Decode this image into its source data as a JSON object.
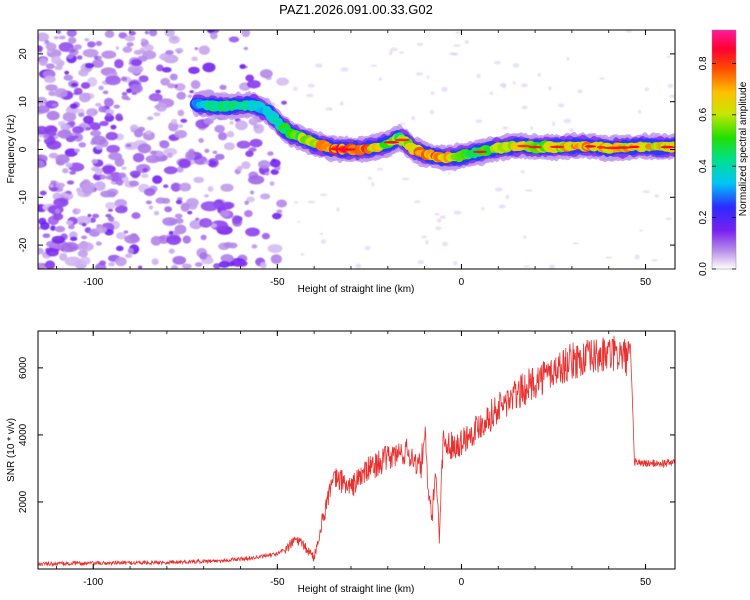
{
  "title": "PAZ1.2026.091.00.33.G02",
  "chart_data": [
    {
      "type": "heatmap",
      "xlabel": "Height of straight line (km)",
      "ylabel": "Frequency (Hz)",
      "xlim": [
        -115,
        58
      ],
      "ylim": [
        -25,
        25
      ],
      "xticks": [
        -100,
        -50,
        0,
        50
      ],
      "yticks": [
        -20,
        -10,
        0,
        10,
        20
      ],
      "xtick_labels": [
        "-100",
        "-50",
        "0",
        "50"
      ],
      "ytick_labels": [
        "-20",
        "-10",
        "0",
        "10",
        "20"
      ],
      "colorbar": {
        "label": "Normalized spectral amplitude",
        "range": [
          0,
          0.93
        ],
        "ticks": [
          0.0,
          0.2,
          0.4,
          0.6,
          0.8
        ],
        "tick_labels": [
          "0.0",
          "0.2",
          "0.4",
          "0.6",
          "0.8"
        ],
        "colormap": "white-purple-blue-cyan-green-yellow-orange-red-magenta"
      },
      "ridge": {
        "x": [
          -72,
          -68,
          -64,
          -60,
          -56,
          -52,
          -49,
          -47,
          -45,
          -42,
          -39,
          -35,
          -31,
          -27,
          -23,
          -19,
          -17,
          -15,
          -13,
          -10,
          -7,
          -4,
          -1,
          2,
          5,
          8,
          12,
          16,
          20,
          24,
          28,
          32,
          36,
          40,
          44,
          48,
          52,
          56,
          58
        ],
        "y": [
          9.5,
          9.2,
          9,
          9.3,
          9.3,
          7.5,
          5,
          3.5,
          3,
          2,
          1,
          0.2,
          0,
          0,
          0.5,
          1.5,
          2.5,
          1.5,
          0,
          -1,
          -1.5,
          -1.8,
          -1.5,
          -1,
          -0.5,
          0,
          0.5,
          0.8,
          0.5,
          0.5,
          0.6,
          0.8,
          0.6,
          0.3,
          0.4,
          0.6,
          0.6,
          0.5,
          0.8
        ],
        "amplitude": [
          0.35,
          0.4,
          0.45,
          0.45,
          0.4,
          0.35,
          0.45,
          0.5,
          0.55,
          0.6,
          0.7,
          0.8,
          0.85,
          0.8,
          0.7,
          0.6,
          0.55,
          0.6,
          0.7,
          0.75,
          0.8,
          0.7,
          0.6,
          0.55,
          0.5,
          0.55,
          0.6,
          0.7,
          0.65,
          0.6,
          0.7,
          0.75,
          0.7,
          0.75,
          0.7,
          0.75,
          0.7,
          0.65,
          0.6
        ]
      },
      "noise_region": {
        "x_from": -115,
        "x_to": -48,
        "y_from": -25,
        "y_to": 25
      }
    },
    {
      "type": "line",
      "xlabel": "Height of straight line (km)",
      "ylabel": "SNR (10 * v/v)",
      "xlim": [
        -115,
        58
      ],
      "ylim": [
        0,
        7100
      ],
      "xticks": [
        -100,
        -50,
        0,
        50
      ],
      "yticks": [
        2000,
        4000,
        6000
      ],
      "xtick_labels": [
        "-100",
        "-50",
        "0",
        "50"
      ],
      "ytick_labels": [
        "2000",
        "4000",
        "6000"
      ],
      "color": "#e8302f",
      "series": [
        {
          "name": "SNR",
          "x": [
            -115,
            -100,
            -80,
            -65,
            -55,
            -50,
            -47,
            -45,
            -43,
            -40,
            -38,
            -36,
            -34,
            -32,
            -30,
            -28,
            -25,
            -22,
            -20,
            -18,
            -15,
            -13,
            -11,
            -10,
            -9,
            -8,
            -7,
            -6,
            -5,
            -4,
            -2,
            0,
            5,
            10,
            15,
            20,
            25,
            30,
            35,
            40,
            43,
            45,
            46,
            47,
            50,
            55,
            58
          ],
          "y": [
            150,
            170,
            200,
            250,
            350,
            450,
            650,
            900,
            700,
            350,
            1300,
            2300,
            2700,
            2600,
            2400,
            2700,
            3000,
            3200,
            3300,
            3400,
            3500,
            3300,
            3000,
            4200,
            2200,
            1500,
            3000,
            1000,
            3800,
            3700,
            3700,
            3800,
            4300,
            4800,
            5200,
            5600,
            5900,
            6200,
            6300,
            6400,
            6400,
            6300,
            6300,
            3200,
            3150,
            3150,
            3200
          ]
        }
      ]
    }
  ]
}
